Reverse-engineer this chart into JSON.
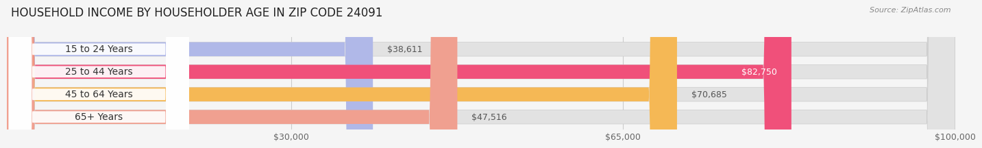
{
  "title": "HOUSEHOLD INCOME BY HOUSEHOLDER AGE IN ZIP CODE 24091",
  "source": "Source: ZipAtlas.com",
  "categories": [
    "15 to 24 Years",
    "25 to 44 Years",
    "45 to 64 Years",
    "65+ Years"
  ],
  "values": [
    38611,
    82750,
    70685,
    47516
  ],
  "bar_colors": [
    "#b0b8e8",
    "#f0507a",
    "#f5b855",
    "#f0a090"
  ],
  "bar_labels": [
    "$38,611",
    "$82,750",
    "$70,685",
    "$47,516"
  ],
  "label_inside": [
    false,
    true,
    false,
    false
  ],
  "label_text_colors": [
    "#555555",
    "#ffffff",
    "#555555",
    "#555555"
  ],
  "xmin": 0,
  "xmax": 100000,
  "xticks": [
    30000,
    65000,
    100000
  ],
  "xtick_labels": [
    "$30,000",
    "$65,000",
    "$100,000"
  ],
  "background_color": "#f5f5f5",
  "bar_bg_color": "#e2e2e2",
  "title_fontsize": 12,
  "source_fontsize": 8,
  "label_fontsize": 9,
  "category_fontsize": 10,
  "tick_fontsize": 9,
  "bar_height": 0.62,
  "bar_gap": 0.38
}
